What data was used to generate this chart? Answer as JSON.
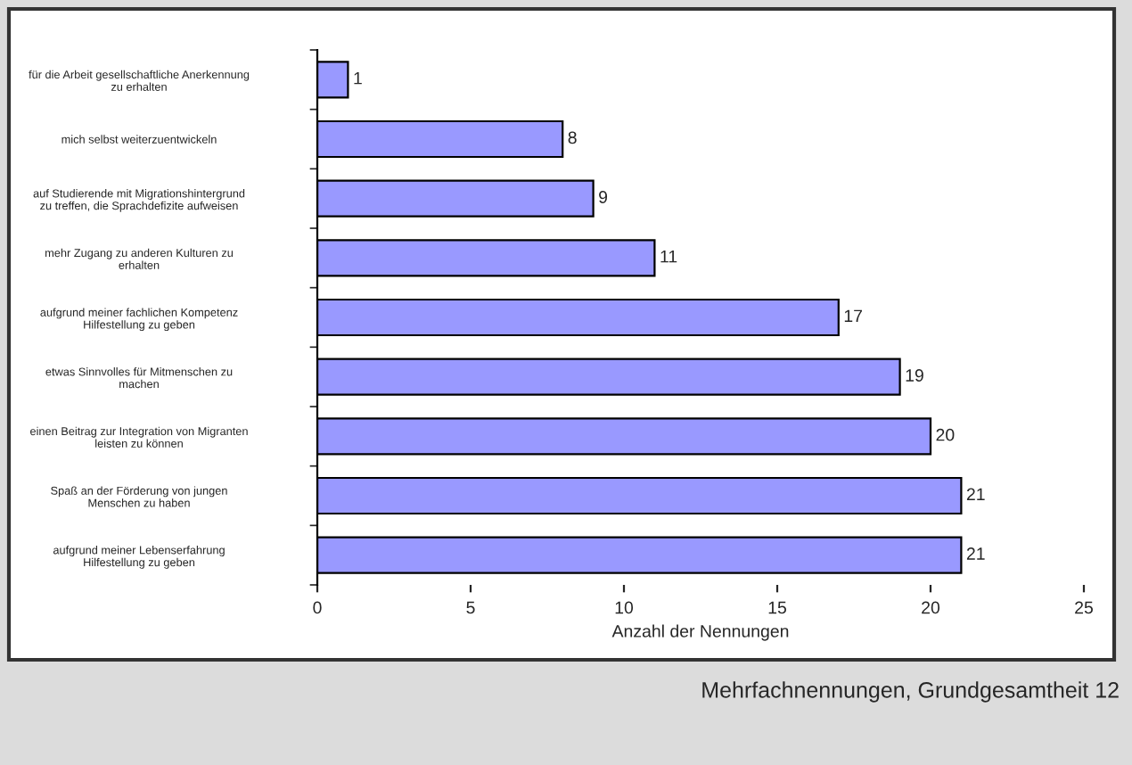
{
  "chart_data": {
    "type": "bar",
    "orientation": "horizontal",
    "xlabel": "Anzahl der Nennungen",
    "categories": [
      "für die Arbeit gesellschaftliche Anerkennung\nzu erhalten",
      "mich selbst weiterzuentwickeln",
      "auf Studierende mit Migrationshintergrund\nzu treffen, die Sprachdefizite aufweisen",
      "mehr Zugang zu anderen Kulturen zu\nerhalten",
      "aufgrund meiner fachlichen Kompetenz\nHilfestellung zu geben",
      "etwas Sinnvolles für Mitmenschen zu\nmachen",
      "einen Beitrag zur Integration von Migranten\nleisten zu können",
      "Spaß an der Förderung von jungen\nMenschen zu haben",
      "aufgrund meiner Lebenserfahrung\nHilfestellung zu geben"
    ],
    "values": [
      1,
      8,
      9,
      11,
      17,
      19,
      20,
      21,
      21
    ],
    "color": "#9999ff",
    "xlim": [
      0,
      25
    ],
    "xticks": [
      0,
      5,
      10,
      15,
      20,
      25
    ],
    "data_labels": true,
    "grid": false,
    "legend": false,
    "annotations": [
      "Mehrfachnennungen, Grundgesamtheit 12"
    ]
  }
}
